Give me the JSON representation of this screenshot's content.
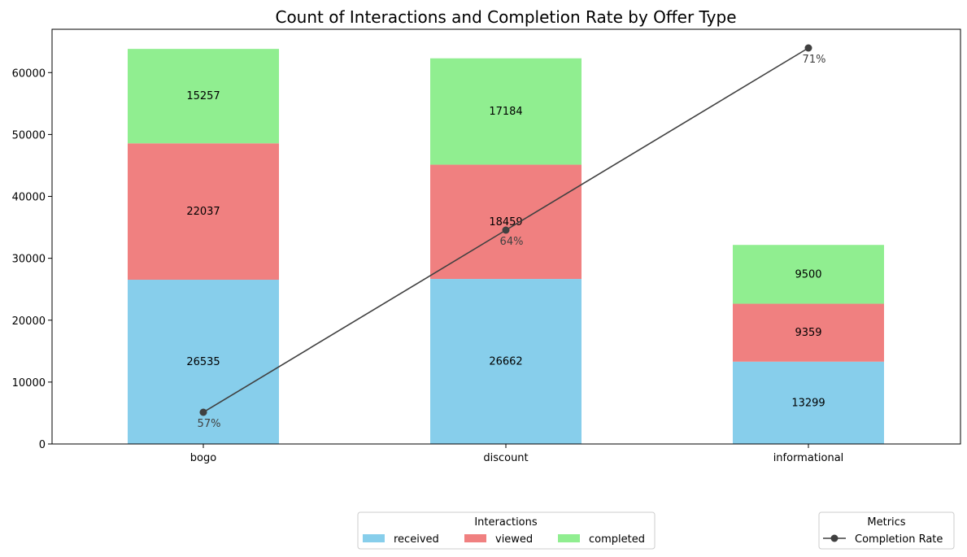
{
  "chart_data": {
    "type": "bar",
    "stacked": true,
    "title": "Count of Interactions and Completion Rate by Offer Type",
    "categories": [
      "bogo",
      "discount",
      "informational"
    ],
    "ylim": [
      0,
      67000
    ],
    "yticks": [
      0,
      10000,
      20000,
      30000,
      40000,
      50000,
      60000
    ],
    "grid": false,
    "series": [
      {
        "name": "received",
        "values": [
          26535,
          26662,
          13299
        ],
        "color": "#87CEEB"
      },
      {
        "name": "viewed",
        "values": [
          22037,
          18459,
          9359
        ],
        "color": "#F08080"
      },
      {
        "name": "completed",
        "values": [
          15257,
          17184,
          9500
        ],
        "color": "#90EE90"
      }
    ],
    "line_series": {
      "name": "Completion Rate",
      "values": [
        57,
        64,
        71
      ],
      "labels": [
        "57%",
        "64%",
        "71%"
      ],
      "color": "#404040",
      "secondary_range": [
        56.5,
        71
      ]
    },
    "legends": [
      {
        "title": "Interactions",
        "placement": "bottom-center",
        "entries": [
          "received",
          "viewed",
          "completed"
        ]
      },
      {
        "title": "Metrics",
        "placement": "bottom-right",
        "entries": [
          "Completion Rate"
        ]
      }
    ]
  }
}
